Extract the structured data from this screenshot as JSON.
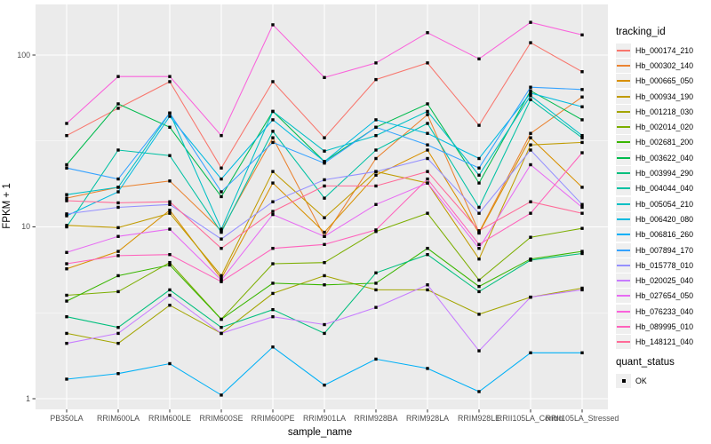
{
  "chart_data": {
    "type": "line",
    "xlabel": "sample_name",
    "ylabel": "FPKM + 1",
    "y_scale": "log10",
    "y_ticks": [
      {
        "label": "1",
        "value": 1
      },
      {
        "label": "10",
        "value": 10
      },
      {
        "label": "100",
        "value": 100
      }
    ],
    "y_minor_values": [
      3.1623,
      31.623
    ],
    "ylim": [
      0.87,
      195
    ],
    "grid": "on",
    "legend_position": "right",
    "panel_bg": "#ebebeb",
    "grid_color": "#ffffff",
    "tick_color": "#333333",
    "point_color": "#000000",
    "point_shape": "square",
    "categories": [
      "PB350LA",
      "RRIM600LA",
      "RRIM600LE",
      "RRIM600SE",
      "RRIM600PE",
      "RRIM901LA",
      "RRIM928BA",
      "RRIM928LA",
      "RRIM928LE",
      "RRII105LA_Control",
      "RRII105LA_Stressed"
    ],
    "series": [
      {
        "name": "Hb_000174_210",
        "color": "#F8766D",
        "values": [
          34,
          49,
          70,
          22,
          70,
          33,
          72,
          90,
          39,
          118,
          80
        ]
      },
      {
        "name": "Hb_000302_140",
        "color": "#EA8331",
        "values": [
          14.7,
          17,
          18.5,
          9.5,
          33,
          8.8,
          25,
          45,
          9.3,
          35,
          57
        ]
      },
      {
        "name": "Hb_000665_050",
        "color": "#D89000",
        "values": [
          5.7,
          7.2,
          12.5,
          5.0,
          18,
          9.3,
          20,
          28,
          9.2,
          33,
          17
        ]
      },
      {
        "name": "Hb_000934_190",
        "color": "#C09B00",
        "values": [
          10.2,
          9.9,
          12,
          5.2,
          21,
          11.3,
          21,
          18,
          6.5,
          30,
          31
        ]
      },
      {
        "name": "Hb_001218_030",
        "color": "#A3A500",
        "values": [
          2.4,
          2.1,
          3.5,
          2.4,
          4.1,
          5.2,
          4.3,
          4.3,
          3.1,
          3.9,
          4.4
        ]
      },
      {
        "name": "Hb_002014_020",
        "color": "#7CAE00",
        "values": [
          4.0,
          4.2,
          6.2,
          2.9,
          6.1,
          6.2,
          9.4,
          12,
          4.9,
          8.7,
          9.8
        ]
      },
      {
        "name": "Hb_002681_200",
        "color": "#39B600",
        "values": [
          3.7,
          5.2,
          6.0,
          2.9,
          4.7,
          4.6,
          4.7,
          7.5,
          4.5,
          6.5,
          7.2
        ]
      },
      {
        "name": "Hb_003622_040",
        "color": "#00BB4E",
        "values": [
          23,
          52,
          38,
          15,
          47,
          24,
          38,
          52,
          18,
          62,
          42
        ]
      },
      {
        "name": "Hb_003994_290",
        "color": "#00BF7D",
        "values": [
          3.0,
          2.6,
          4.3,
          2.6,
          3.3,
          2.4,
          5.4,
          6.9,
          4.2,
          6.4,
          7.0
        ]
      },
      {
        "name": "Hb_004044_040",
        "color": "#00C1A3",
        "values": [
          10,
          28,
          26,
          9.3,
          36,
          14.7,
          28,
          40,
          13,
          55,
          33
        ]
      },
      {
        "name": "Hb_005054_210",
        "color": "#00BFC4",
        "values": [
          15.4,
          17,
          46,
          9.7,
          47,
          27.6,
          34,
          47,
          20,
          58,
          34
        ]
      },
      {
        "name": "Hb_006420_080",
        "color": "#00BAE0",
        "values": [
          11.6,
          16,
          44,
          19,
          42,
          24,
          42,
          35,
          25,
          60,
          50
        ]
      },
      {
        "name": "Hb_006816_260",
        "color": "#00B0F6",
        "values": [
          1.3,
          1.4,
          1.6,
          1.05,
          2.0,
          1.2,
          1.7,
          1.5,
          1.1,
          1.85,
          1.85
        ]
      },
      {
        "name": "Hb_007894_170",
        "color": "#35A2FF",
        "values": [
          22,
          19,
          46,
          16,
          31,
          23.5,
          38,
          30,
          22,
          65,
          63
        ]
      },
      {
        "name": "Hb_015778_010",
        "color": "#9590FF",
        "values": [
          11.9,
          13,
          13.5,
          8.5,
          14,
          18.8,
          21,
          25,
          12,
          28,
          13.5
        ]
      },
      {
        "name": "Hb_020025_040",
        "color": "#C77CFF",
        "values": [
          2.1,
          2.4,
          4.0,
          2.4,
          3.0,
          2.7,
          3.4,
          4.6,
          1.9,
          3.9,
          4.3
        ]
      },
      {
        "name": "Hb_027654_050",
        "color": "#E76BF3",
        "values": [
          7.1,
          8.8,
          9.7,
          4.9,
          11.8,
          8.8,
          13.5,
          18,
          7.5,
          23,
          13
        ]
      },
      {
        "name": "Hb_076233_040",
        "color": "#FA62DB",
        "values": [
          40,
          75,
          75,
          34,
          150,
          74,
          90,
          135,
          95,
          155,
          131
        ]
      },
      {
        "name": "Hb_089995_010",
        "color": "#FF62BC",
        "values": [
          6.1,
          6.8,
          6.9,
          4.8,
          7.5,
          7.9,
          9.6,
          19,
          7.9,
          12,
          27
        ]
      },
      {
        "name": "Hb_148121_040",
        "color": "#FF6A98",
        "values": [
          14.2,
          13.8,
          14,
          7.5,
          12.3,
          17.3,
          17.3,
          21,
          9.5,
          14,
          12
        ]
      }
    ]
  },
  "legend": {
    "tracking_title": "tracking_id",
    "quant_title": "quant_status",
    "quant_items": [
      {
        "label": "OK"
      }
    ]
  }
}
